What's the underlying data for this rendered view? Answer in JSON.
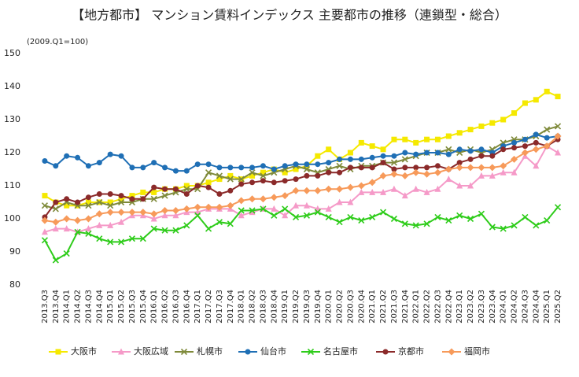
{
  "chart_data": {
    "type": "line",
    "title": "【地方都市】 マンション賃料インデックス 主要都市の推移（連鎖型・総合）",
    "subtitle": "(2009.Q1=100)",
    "categories": [
      "2013.Q3",
      "2013.Q4",
      "2014.Q1",
      "2014.Q2",
      "2014.Q3",
      "2014.Q4",
      "2015.Q1",
      "2015.Q2",
      "2015.Q3",
      "2015.Q4",
      "2016.Q1",
      "2016.Q2",
      "2016.Q3",
      "2016.Q4",
      "2017.Q1",
      "2017.Q2",
      "2017.Q3",
      "2017.Q4",
      "2018.Q1",
      "2018.Q2",
      "2018.Q3",
      "2018.Q4",
      "2019.Q1",
      "2019.Q2",
      "2019.Q3",
      "2019.Q4",
      "2020.Q1",
      "2020.Q2",
      "2020.Q3",
      "2020.Q4",
      "2021.Q1",
      "2021.Q2",
      "2021.Q3",
      "2021.Q4",
      "2022.Q1",
      "2022.Q2",
      "2022.Q3",
      "2022.Q4",
      "2023.Q1",
      "2023.Q2",
      "2023.Q3",
      "2023.Q4",
      "2024.Q1",
      "2024.Q2",
      "2024.Q3",
      "2024.Q4",
      "2025.Q1",
      "2025.Q2"
    ],
    "ylim": [
      80,
      150
    ],
    "yticks": [
      80,
      90,
      100,
      110,
      120,
      130,
      140,
      150
    ],
    "grid": false,
    "legend": "bottom",
    "series": [
      {
        "name": "大阪市",
        "color": "#f5e900",
        "marker": "square",
        "values": [
          107,
          105,
          104,
          104,
          105,
          105,
          105,
          106,
          107,
          108,
          108,
          109,
          109,
          110,
          110,
          111,
          112,
          113,
          112,
          113,
          114,
          115,
          114,
          115,
          116,
          119,
          121,
          118,
          120,
          123,
          122,
          121,
          124,
          124,
          123,
          124,
          124,
          125,
          126,
          127,
          128,
          129,
          130,
          132,
          135,
          136,
          138.5,
          137
        ]
      },
      {
        "name": "大阪広域",
        "color": "#f59ac8",
        "marker": "triangle",
        "values": [
          96,
          97,
          97,
          96,
          97,
          98,
          98,
          99,
          101,
          101,
          100,
          101,
          101,
          102,
          102,
          103,
          103,
          103,
          101,
          102,
          103,
          103,
          101,
          104,
          104,
          103,
          103,
          105,
          105,
          108,
          108,
          108,
          109,
          107,
          109,
          108,
          109,
          112,
          110,
          110,
          113,
          113,
          114,
          114,
          119,
          116,
          122,
          120
        ]
      },
      {
        "name": "札幌市",
        "color": "#7f8a3a",
        "marker": "x",
        "values": [
          104,
          103,
          105,
          104,
          104,
          105,
          104,
          105,
          105,
          106,
          106,
          107,
          108,
          109,
          109,
          114,
          113,
          112,
          112,
          114,
          113,
          114,
          115,
          116,
          115,
          114,
          115,
          116,
          115,
          116,
          116,
          117,
          117,
          118,
          119,
          120,
          120,
          121,
          120,
          121,
          120,
          121,
          123,
          124,
          124,
          125,
          127,
          128
        ]
      },
      {
        "name": "仙台市",
        "color": "#1f6fb5",
        "marker": "circle",
        "values": [
          117.5,
          116,
          119,
          118.5,
          116,
          117,
          119.5,
          119,
          115.5,
          115.5,
          117,
          115.5,
          114.5,
          114.5,
          116.5,
          116.5,
          115.5,
          115.5,
          115.5,
          115.5,
          116,
          115,
          116,
          116.5,
          116.5,
          116.5,
          117,
          118,
          118,
          118,
          118.5,
          119,
          119,
          120,
          119.5,
          120,
          120,
          119.5,
          121,
          120.5,
          121,
          120,
          122,
          123,
          124,
          125.5,
          124.5,
          125
        ]
      },
      {
        "name": "名古屋市",
        "color": "#2ecc1a",
        "marker": "x",
        "values": [
          93.5,
          87.5,
          89.5,
          96,
          95.5,
          94,
          93,
          93,
          94,
          94,
          97,
          96.5,
          96.5,
          98,
          101,
          97,
          99,
          98.5,
          102.5,
          102.5,
          103,
          101,
          103,
          100.5,
          101,
          102,
          100.5,
          99,
          100.5,
          99.5,
          100.5,
          102,
          100,
          98.5,
          98,
          98.5,
          100.5,
          99.5,
          101,
          100,
          101.5,
          97.5,
          97,
          98,
          100.5,
          98,
          99.5,
          103.5
        ]
      },
      {
        "name": "京都市",
        "color": "#8b2a2a",
        "marker": "circle",
        "values": [
          100.5,
          105,
          106,
          105,
          106.5,
          107.5,
          107.5,
          107,
          106,
          106,
          109.5,
          109,
          109,
          107.5,
          110,
          109.5,
          107.5,
          108.5,
          110.5,
          111,
          111.5,
          111,
          111.5,
          112,
          113,
          113,
          114,
          114,
          115.5,
          115.5,
          115.5,
          117,
          115,
          115.5,
          115.5,
          115.5,
          116,
          115,
          117,
          118,
          119,
          119,
          121,
          121.5,
          122,
          123,
          122,
          124
        ]
      },
      {
        "name": "福岡市",
        "color": "#f79a5a",
        "marker": "diamond",
        "values": [
          99.5,
          99,
          100,
          99.5,
          100,
          101.5,
          102,
          102,
          102,
          102,
          101.5,
          102.5,
          102.5,
          103,
          103.5,
          103.5,
          103.5,
          104,
          105.5,
          106,
          106,
          106.5,
          107,
          108.5,
          108.5,
          108.5,
          109,
          109,
          109.5,
          110,
          111,
          113,
          113.5,
          113,
          114,
          113.5,
          114,
          115,
          115.5,
          115.5,
          115.5,
          115.5,
          116,
          118,
          120,
          121,
          122,
          125
        ]
      }
    ]
  }
}
